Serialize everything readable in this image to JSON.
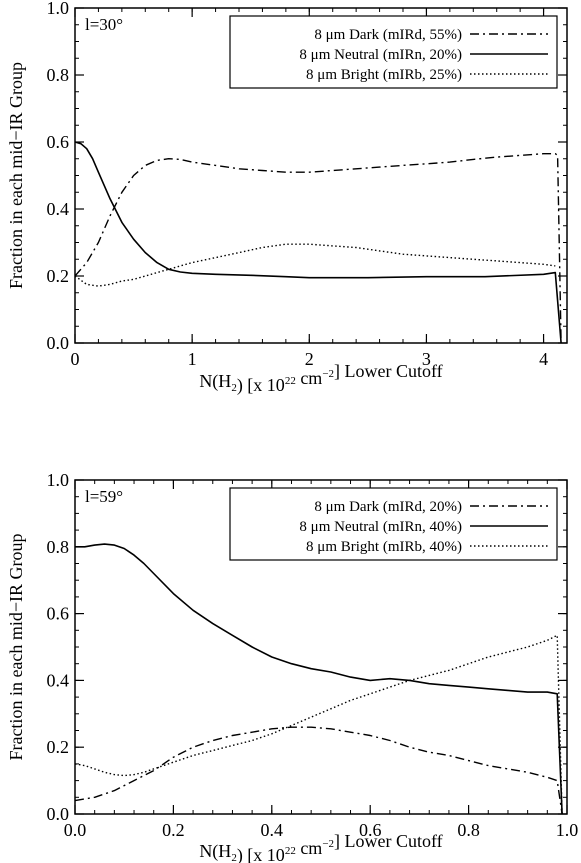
{
  "chart_data": [
    {
      "type": "line",
      "panel_label": "l=30°",
      "xlabel": {
        "base": "N(H",
        "sub": "2",
        "mid": ") [x 10",
        "sup": "22",
        "cm": " cm",
        "cmsup": "−2",
        "tail": "] Lower Cutoff"
      },
      "ylabel": "Fraction in each mid−IR Group",
      "xlim": [
        0,
        4.2
      ],
      "ylim": [
        0,
        1.0
      ],
      "xticks": [
        "0",
        "1",
        "2",
        "3",
        "4"
      ],
      "xtick_values": [
        0,
        1,
        2,
        3,
        4
      ],
      "yticks": [
        "0.0",
        "0.2",
        "0.4",
        "0.6",
        "0.8",
        "1.0"
      ],
      "ytick_values": [
        0,
        0.2,
        0.4,
        0.6,
        0.8,
        1.0
      ],
      "legend_position": "top-right",
      "series": [
        {
          "name": "8 μm Dark (mIRd, 55%)",
          "style": "dashdot",
          "x": [
            0,
            0.1,
            0.2,
            0.3,
            0.4,
            0.5,
            0.6,
            0.7,
            0.8,
            0.9,
            1.0,
            1.2,
            1.4,
            1.6,
            1.8,
            2.0,
            2.2,
            2.4,
            2.6,
            2.8,
            3.0,
            3.2,
            3.4,
            3.6,
            3.8,
            4.0,
            4.1,
            4.12,
            4.15
          ],
          "y": [
            0.2,
            0.24,
            0.3,
            0.38,
            0.45,
            0.5,
            0.53,
            0.545,
            0.55,
            0.548,
            0.54,
            0.53,
            0.52,
            0.515,
            0.51,
            0.51,
            0.515,
            0.52,
            0.525,
            0.53,
            0.535,
            0.54,
            0.548,
            0.555,
            0.56,
            0.565,
            0.565,
            0.56,
            0.0
          ]
        },
        {
          "name": "8 μm Neutral (mIRn, 20%)",
          "style": "solid",
          "x": [
            0,
            0.05,
            0.1,
            0.15,
            0.2,
            0.3,
            0.4,
            0.5,
            0.6,
            0.7,
            0.8,
            0.9,
            1.0,
            1.2,
            1.5,
            1.8,
            2.0,
            2.5,
            3.0,
            3.5,
            4.0,
            4.1,
            4.15
          ],
          "y": [
            0.6,
            0.595,
            0.58,
            0.55,
            0.51,
            0.43,
            0.36,
            0.31,
            0.27,
            0.24,
            0.22,
            0.212,
            0.208,
            0.205,
            0.202,
            0.198,
            0.195,
            0.195,
            0.198,
            0.198,
            0.205,
            0.21,
            0.0
          ]
        },
        {
          "name": "8 μm Bright (mIRb, 25%)",
          "style": "dotted",
          "x": [
            0,
            0.1,
            0.2,
            0.3,
            0.4,
            0.5,
            0.6,
            0.7,
            0.8,
            0.9,
            1.0,
            1.2,
            1.4,
            1.6,
            1.8,
            2.0,
            2.2,
            2.4,
            2.6,
            2.8,
            3.0,
            3.2,
            3.4,
            3.6,
            3.8,
            4.0,
            4.1
          ],
          "y": [
            0.2,
            0.175,
            0.17,
            0.175,
            0.185,
            0.19,
            0.2,
            0.21,
            0.22,
            0.23,
            0.24,
            0.255,
            0.27,
            0.285,
            0.295,
            0.295,
            0.29,
            0.285,
            0.275,
            0.265,
            0.26,
            0.255,
            0.25,
            0.245,
            0.24,
            0.235,
            0.23
          ]
        }
      ]
    },
    {
      "type": "line",
      "panel_label": "l=59°",
      "xlabel": {
        "base": "N(H",
        "sub": "2",
        "mid": ") [x 10",
        "sup": "22",
        "cm": " cm",
        "cmsup": "−2",
        "tail": "] Lower Cutoff"
      },
      "ylabel": "Fraction in each mid−IR Group",
      "xlim": [
        0,
        1.0
      ],
      "ylim": [
        0,
        1.0
      ],
      "xticks": [
        "0.0",
        "0.2",
        "0.4",
        "0.6",
        "0.8",
        "1.0"
      ],
      "xtick_values": [
        0,
        0.2,
        0.4,
        0.6,
        0.8,
        1.0
      ],
      "yticks": [
        "0.0",
        "0.2",
        "0.4",
        "0.6",
        "0.8",
        "1.0"
      ],
      "ytick_values": [
        0,
        0.2,
        0.4,
        0.6,
        0.8,
        1.0
      ],
      "legend_position": "top-right",
      "series": [
        {
          "name": "8 μm Dark (mIRd, 20%)",
          "style": "dashdot",
          "x": [
            0,
            0.04,
            0.08,
            0.12,
            0.16,
            0.2,
            0.24,
            0.28,
            0.32,
            0.36,
            0.4,
            0.44,
            0.48,
            0.52,
            0.56,
            0.6,
            0.64,
            0.68,
            0.72,
            0.76,
            0.8,
            0.84,
            0.88,
            0.92,
            0.96,
            0.98,
            0.99
          ],
          "y": [
            0.04,
            0.05,
            0.07,
            0.1,
            0.13,
            0.17,
            0.2,
            0.22,
            0.235,
            0.245,
            0.255,
            0.26,
            0.26,
            0.255,
            0.245,
            0.235,
            0.22,
            0.2,
            0.185,
            0.175,
            0.16,
            0.145,
            0.135,
            0.125,
            0.11,
            0.1,
            0.0
          ]
        },
        {
          "name": "8 μm Neutral (mIRn, 40%)",
          "style": "solid",
          "x": [
            0,
            0.02,
            0.04,
            0.06,
            0.08,
            0.1,
            0.12,
            0.14,
            0.16,
            0.2,
            0.24,
            0.28,
            0.32,
            0.36,
            0.4,
            0.44,
            0.48,
            0.52,
            0.56,
            0.6,
            0.64,
            0.68,
            0.72,
            0.76,
            0.8,
            0.84,
            0.88,
            0.92,
            0.96,
            0.98,
            0.99
          ],
          "y": [
            0.8,
            0.8,
            0.805,
            0.808,
            0.805,
            0.795,
            0.775,
            0.75,
            0.72,
            0.66,
            0.61,
            0.57,
            0.535,
            0.5,
            0.47,
            0.45,
            0.435,
            0.425,
            0.41,
            0.4,
            0.405,
            0.4,
            0.39,
            0.385,
            0.38,
            0.375,
            0.37,
            0.365,
            0.365,
            0.36,
            0.0
          ]
        },
        {
          "name": "8 μm Bright (mIRb, 40%)",
          "style": "dotted",
          "x": [
            0,
            0.02,
            0.04,
            0.06,
            0.08,
            0.1,
            0.12,
            0.14,
            0.16,
            0.2,
            0.24,
            0.28,
            0.32,
            0.36,
            0.4,
            0.44,
            0.48,
            0.52,
            0.56,
            0.6,
            0.64,
            0.68,
            0.72,
            0.76,
            0.8,
            0.84,
            0.88,
            0.92,
            0.96,
            0.98,
            0.99
          ],
          "y": [
            0.15,
            0.145,
            0.135,
            0.125,
            0.118,
            0.115,
            0.118,
            0.125,
            0.135,
            0.155,
            0.175,
            0.19,
            0.205,
            0.22,
            0.24,
            0.265,
            0.29,
            0.315,
            0.34,
            0.36,
            0.38,
            0.4,
            0.415,
            0.43,
            0.45,
            0.47,
            0.485,
            0.5,
            0.52,
            0.535,
            0.0
          ]
        }
      ]
    }
  ]
}
